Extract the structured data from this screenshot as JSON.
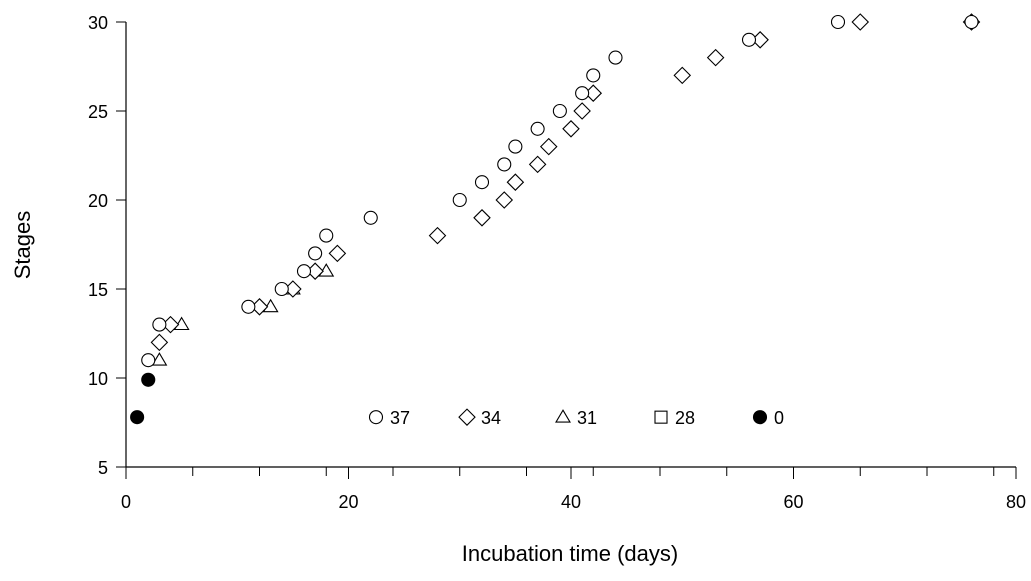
{
  "chart_data": {
    "type": "scatter",
    "title": "",
    "xlabel": "Incubation time (days)",
    "ylabel": "Stages",
    "xlim": [
      0,
      80
    ],
    "ylim": [
      5,
      30
    ],
    "xticks": [
      0,
      20,
      40,
      60,
      80
    ],
    "xticks_minor": [
      0,
      6,
      12,
      18,
      24,
      30,
      36,
      42,
      48,
      54,
      60,
      66,
      72,
      78
    ],
    "yticks": [
      5,
      10,
      15,
      20,
      25,
      30
    ],
    "grid": false,
    "legend_position": "inside-bottom-center",
    "series": [
      {
        "name": "37",
        "marker": "circle-open",
        "points": [
          [
            2,
            11
          ],
          [
            3,
            13
          ],
          [
            11,
            14
          ],
          [
            14,
            15
          ],
          [
            16,
            16
          ],
          [
            17,
            17
          ],
          [
            18,
            18
          ],
          [
            22,
            19
          ],
          [
            30,
            20
          ],
          [
            32,
            21
          ],
          [
            34,
            22
          ],
          [
            35,
            23
          ],
          [
            37,
            24
          ],
          [
            39,
            25
          ],
          [
            41,
            26
          ],
          [
            42,
            27
          ],
          [
            44,
            28
          ],
          [
            56,
            29
          ],
          [
            64,
            30
          ],
          [
            76,
            30
          ]
        ]
      },
      {
        "name": "34",
        "marker": "diamond-open",
        "points": [
          [
            3,
            12
          ],
          [
            4,
            13
          ],
          [
            12,
            14
          ],
          [
            15,
            15
          ],
          [
            17,
            16
          ],
          [
            19,
            17
          ],
          [
            28,
            18
          ],
          [
            32,
            19
          ],
          [
            34,
            20
          ],
          [
            35,
            21
          ],
          [
            37,
            22
          ],
          [
            38,
            23
          ],
          [
            40,
            24
          ],
          [
            41,
            25
          ],
          [
            42,
            26
          ],
          [
            50,
            27
          ],
          [
            53,
            28
          ],
          [
            57,
            29
          ],
          [
            66,
            30
          ],
          [
            76,
            30
          ]
        ]
      },
      {
        "name": "31",
        "marker": "triangle-open",
        "points": [
          [
            3,
            11
          ],
          [
            5,
            13
          ],
          [
            13,
            14
          ],
          [
            15,
            15
          ],
          [
            18,
            16
          ]
        ]
      },
      {
        "name": "28",
        "marker": "square-open",
        "points": []
      },
      {
        "name": "0",
        "marker": "circle-filled",
        "points": [
          [
            1,
            7.8
          ],
          [
            2,
            9.9
          ]
        ]
      }
    ]
  }
}
